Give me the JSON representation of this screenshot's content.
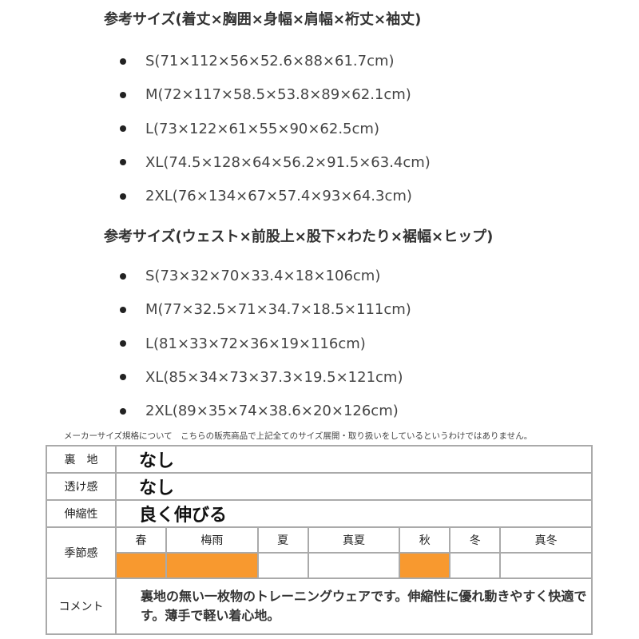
{
  "top": {
    "heading": "参考サイズ(着丈×胸囲×身幅×肩幅×裄丈×袖丈)",
    "items": [
      "S(71×112×56×52.6×88×61.7cm)",
      "M(72×117×58.5×53.8×89×62.1cm)",
      "L(73×122×61×55×90×62.5cm)",
      "XL(74.5×128×64×56.2×91.5×63.4cm)",
      "2XL(76×134×67×57.4×93×64.3cm)"
    ]
  },
  "bottom": {
    "heading": "参考サイズ(ウェスト×前股上×股下×わたり×裾幅×ヒップ)",
    "items": [
      "S(73×32×70×33.4×18×106cm)",
      "M(77×32.5×71×34.7×18.5×111cm)",
      "L(81×33×72×36×19×116cm)",
      "XL(85×34×73×37.3×19.5×121cm)",
      "2XL(89×35×74×38.6×20×126cm)"
    ]
  },
  "note": "メーカーサイズ規格について　こちらの販売商品で上記全てのサイズ展開・取り扱いをしているというわけではありません。",
  "table": {
    "lining": {
      "label": "裏　地",
      "value": "なし"
    },
    "sheer": {
      "label": "透け感",
      "value": "なし"
    },
    "stretch": {
      "label": "伸縮性",
      "value": "良く伸びる"
    },
    "season": {
      "label": "季節感",
      "highlight_color": "#f8992f",
      "seasons": [
        {
          "name": "春",
          "active": true
        },
        {
          "name": "梅雨",
          "active": true
        },
        {
          "name": "夏",
          "active": false
        },
        {
          "name": "真夏",
          "active": false
        },
        {
          "name": "秋",
          "active": true
        },
        {
          "name": "冬",
          "active": false
        },
        {
          "name": "真冬",
          "active": false
        }
      ]
    },
    "comment": {
      "label": "コメント",
      "text": "裏地の無い一枚物のトレーニングウェアです。伸縮性に優れ動きやすく快適です。薄手で軽い着心地。"
    }
  }
}
